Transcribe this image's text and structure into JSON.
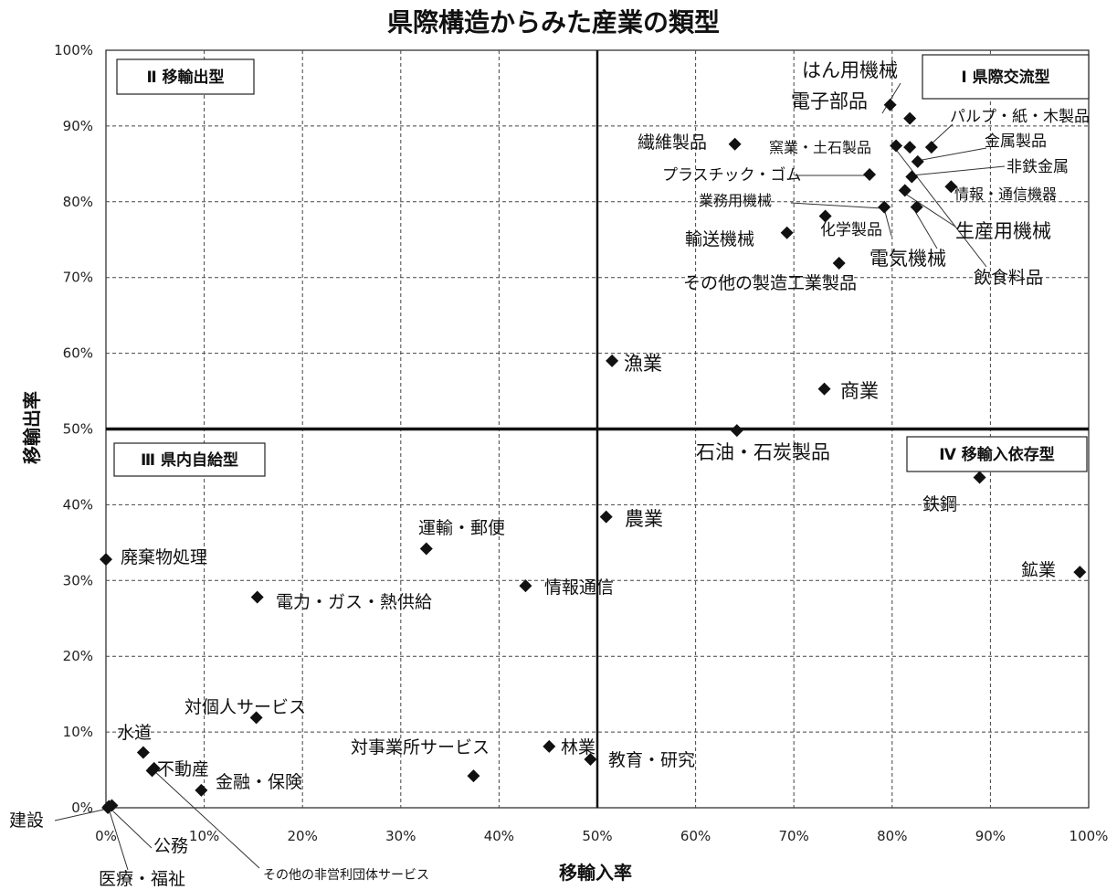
{
  "chart_data": {
    "type": "scatter",
    "title": "県際構造からみた産業の類型",
    "xlabel": "移輸入率",
    "ylabel": "移輸出率",
    "xlim": [
      0,
      100
    ],
    "ylim": [
      0,
      100
    ],
    "x_ticks": [
      "0%",
      "10%",
      "20%",
      "30%",
      "40%",
      "50%",
      "60%",
      "70%",
      "80%",
      "90%",
      "100%"
    ],
    "y_ticks": [
      "0%",
      "10%",
      "20%",
      "30%",
      "40%",
      "50%",
      "60%",
      "70%",
      "80%",
      "90%",
      "100%"
    ],
    "grid": true,
    "quadrants": [
      {
        "label": "Ⅰ 県際交流型",
        "position": "top-right"
      },
      {
        "label": "Ⅱ 移輸出型",
        "position": "top-left"
      },
      {
        "label": "Ⅲ 県内自給型",
        "position": "bottom-left"
      },
      {
        "label": "Ⅳ 移輸入依存型",
        "position": "bottom-right"
      }
    ],
    "points": [
      {
        "name": "はん用機械",
        "x": 81.8,
        "y": 91.0
      },
      {
        "name": "電子部品",
        "x": 79.8,
        "y": 92.8
      },
      {
        "name": "パルプ・紙・木製品",
        "x": 84.0,
        "y": 87.2
      },
      {
        "name": "繊維製品",
        "x": 64.0,
        "y": 87.6
      },
      {
        "name": "窯業・土石製品",
        "x": 80.4,
        "y": 87.4
      },
      {
        "name": "金属製品",
        "x": 82.6,
        "y": 85.3
      },
      {
        "name": "非鉄金属",
        "x": 82.0,
        "y": 83.3
      },
      {
        "name": "プラスチック・ゴム",
        "x": 77.7,
        "y": 83.6
      },
      {
        "name": "情報・通信機器",
        "x": 86.0,
        "y": 82.0
      },
      {
        "name": "業務用機械",
        "x": 79.2,
        "y": 79.3
      },
      {
        "name": "化学製品",
        "x": 73.2,
        "y": 78.1
      },
      {
        "name": "生産用機械",
        "x": 81.3,
        "y": 81.5
      },
      {
        "name": "電気機械",
        "x": 82.5,
        "y": 79.3
      },
      {
        "name": "輸送機械",
        "x": 69.3,
        "y": 75.9
      },
      {
        "name": "飲食料品",
        "x": 81.8,
        "y": 87.2
      },
      {
        "name": "その他の製造工業製品",
        "x": 74.6,
        "y": 71.9
      },
      {
        "name": "漁業",
        "x": 51.5,
        "y": 59.0
      },
      {
        "name": "商業",
        "x": 73.1,
        "y": 55.3
      },
      {
        "name": "石油・石炭製品",
        "x": 64.2,
        "y": 49.8
      },
      {
        "name": "鉄鋼",
        "x": 88.9,
        "y": 43.6
      },
      {
        "name": "鉱業",
        "x": 99.1,
        "y": 31.1
      },
      {
        "name": "運輸・郵便",
        "x": 32.6,
        "y": 34.2
      },
      {
        "name": "農業",
        "x": 50.9,
        "y": 38.4
      },
      {
        "name": "廃棄物処理",
        "x": 0.0,
        "y": 32.8
      },
      {
        "name": "情報通信",
        "x": 42.7,
        "y": 29.3
      },
      {
        "name": "電力・ガス・熱供給",
        "x": 15.4,
        "y": 27.8
      },
      {
        "name": "対個人サービス",
        "x": 15.3,
        "y": 11.9
      },
      {
        "name": "水道",
        "x": 3.8,
        "y": 7.3
      },
      {
        "name": "林業",
        "x": 45.1,
        "y": 8.1
      },
      {
        "name": "教育・研究",
        "x": 49.3,
        "y": 6.4
      },
      {
        "name": "不動産",
        "x": 4.7,
        "y": 4.9
      },
      {
        "name": "金融・保険",
        "x": 9.7,
        "y": 2.3
      },
      {
        "name": "対事業所サービス",
        "x": 37.4,
        "y": 4.2
      },
      {
        "name": "建設",
        "x": 0.2,
        "y": 0.0
      },
      {
        "name": "公務",
        "x": 0.6,
        "y": 0.3
      },
      {
        "name": "医療・福祉",
        "x": 0.3,
        "y": 0.2
      },
      {
        "name": "その他の非営利団体サービス",
        "x": 4.9,
        "y": 5.2
      }
    ]
  }
}
